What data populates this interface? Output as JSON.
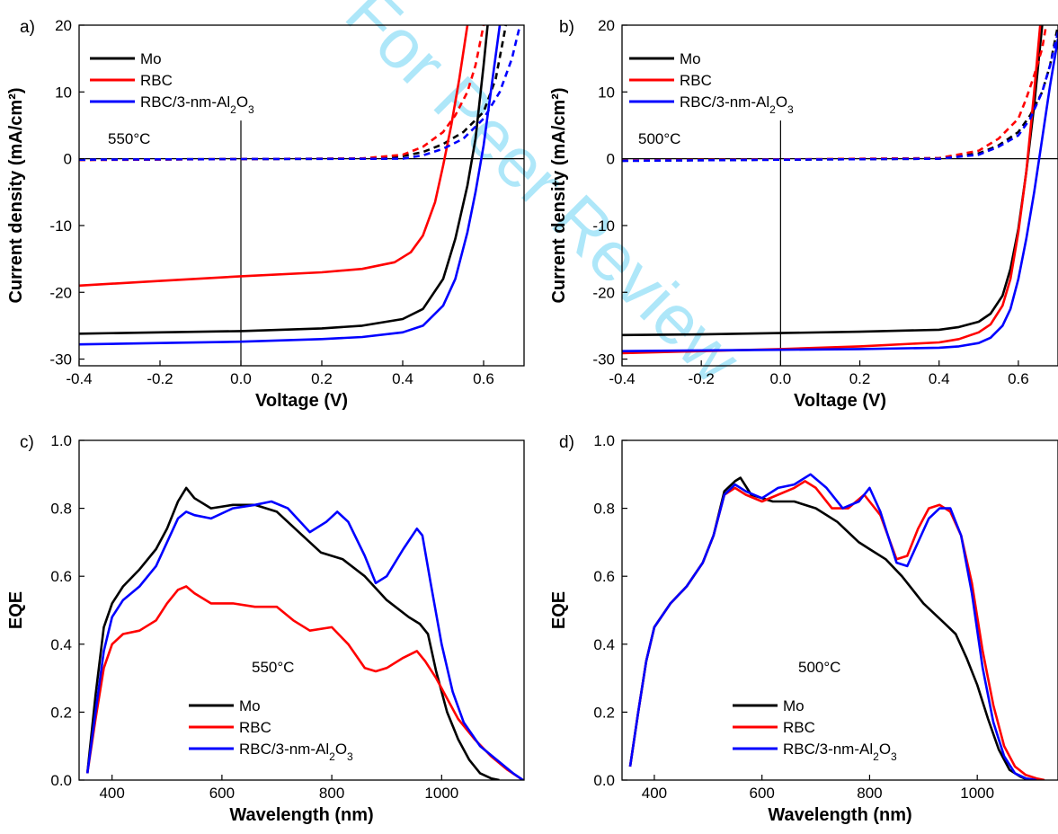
{
  "watermark_text": "For Peer Review",
  "chart_data": [
    {
      "panel": "a)",
      "type": "line",
      "xlabel": "Voltage (V)",
      "ylabel": "Current density (mA/cm²)",
      "xlim": [
        -0.4,
        0.7
      ],
      "ylim": [
        -31,
        20
      ],
      "xticks": [
        -0.4,
        -0.2,
        0.0,
        0.2,
        0.4,
        0.6
      ],
      "xtick_labels": [
        "-0.4",
        "-0.2",
        "0.0",
        "0.2",
        "0.4",
        "0.6"
      ],
      "yticks": [
        -30,
        -20,
        -10,
        0,
        10,
        20
      ],
      "ytick_labels": [
        "-30",
        "-20",
        "-10",
        "0",
        "10",
        "20"
      ],
      "zero_lines": true,
      "annotation": "550°C",
      "legend_placement": "top-left",
      "series": [
        {
          "name": "Mo",
          "color": "#000000",
          "style": "solid",
          "x": [
            -0.4,
            -0.2,
            0.0,
            0.2,
            0.3,
            0.4,
            0.45,
            0.5,
            0.53,
            0.56,
            0.58,
            0.6,
            0.61
          ],
          "y": [
            -26.2,
            -26.0,
            -25.8,
            -25.4,
            -25.0,
            -24.0,
            -22.5,
            -18.0,
            -12.0,
            -4.0,
            3.0,
            14.0,
            20.0
          ]
        },
        {
          "name": "Mo",
          "color": "#000000",
          "style": "dashed",
          "x": [
            -0.4,
            0.0,
            0.3,
            0.4,
            0.45,
            0.5,
            0.55,
            0.6,
            0.63,
            0.655
          ],
          "y": [
            -0.15,
            -0.05,
            0.0,
            0.4,
            1.0,
            2.2,
            4.0,
            7.0,
            12.0,
            20.0
          ]
        },
        {
          "name": "RBC",
          "color": "#ff0000",
          "style": "solid",
          "x": [
            -0.4,
            -0.2,
            0.0,
            0.2,
            0.3,
            0.38,
            0.42,
            0.45,
            0.48,
            0.5,
            0.52,
            0.54,
            0.56
          ],
          "y": [
            -19.0,
            -18.3,
            -17.6,
            -17.0,
            -16.5,
            -15.5,
            -14.0,
            -11.5,
            -6.5,
            -1.0,
            5.0,
            12.0,
            20.0
          ]
        },
        {
          "name": "RBC",
          "color": "#ff0000",
          "style": "dashed",
          "x": [
            -0.4,
            0.0,
            0.3,
            0.4,
            0.45,
            0.5,
            0.53,
            0.56,
            0.58,
            0.6
          ],
          "y": [
            -0.2,
            -0.05,
            0.05,
            0.6,
            1.8,
            4.0,
            6.5,
            10.0,
            14.0,
            20.0
          ]
        },
        {
          "name": "RBC/3-nm-Al2O3",
          "color": "#0000ff",
          "style": "solid",
          "x": [
            -0.4,
            -0.2,
            0.0,
            0.2,
            0.3,
            0.4,
            0.45,
            0.5,
            0.53,
            0.56,
            0.58,
            0.6,
            0.62,
            0.64
          ],
          "y": [
            -27.8,
            -27.6,
            -27.4,
            -27.0,
            -26.7,
            -26.0,
            -25.0,
            -22.0,
            -18.0,
            -11.0,
            -5.0,
            2.0,
            11.0,
            20.0
          ]
        },
        {
          "name": "RBC/3-nm-Al2O3",
          "color": "#0000ff",
          "style": "dashed",
          "x": [
            -0.4,
            0.0,
            0.4,
            0.45,
            0.5,
            0.55,
            0.6,
            0.64,
            0.67,
            0.69
          ],
          "y": [
            -0.15,
            -0.05,
            0.0,
            0.5,
            1.5,
            3.0,
            6.0,
            10.0,
            15.0,
            20.0
          ]
        }
      ]
    },
    {
      "panel": "b)",
      "type": "line",
      "xlabel": "Voltage (V)",
      "ylabel": "Current density (mA/cm²)",
      "xlim": [
        -0.4,
        0.7
      ],
      "ylim": [
        -31,
        20
      ],
      "xticks": [
        -0.4,
        -0.2,
        0.0,
        0.2,
        0.4,
        0.6
      ],
      "xtick_labels": [
        "-0.4",
        "-0.2",
        "0.0",
        "0.2",
        "0.4",
        "0.6"
      ],
      "yticks": [
        -30,
        -20,
        -10,
        0,
        10,
        20
      ],
      "ytick_labels": [
        "-30",
        "-20",
        "-10",
        "0",
        "10",
        "20"
      ],
      "zero_lines": true,
      "annotation": "500°C",
      "legend_placement": "top-left",
      "series": [
        {
          "name": "Mo",
          "color": "#000000",
          "style": "solid",
          "x": [
            -0.4,
            -0.2,
            0.0,
            0.2,
            0.4,
            0.45,
            0.5,
            0.53,
            0.56,
            0.58,
            0.6,
            0.62,
            0.64,
            0.66
          ],
          "y": [
            -26.4,
            -26.3,
            -26.1,
            -25.9,
            -25.6,
            -25.2,
            -24.4,
            -23.2,
            -20.5,
            -16.5,
            -10.5,
            -2.0,
            8.0,
            20.0
          ]
        },
        {
          "name": "Mo",
          "color": "#000000",
          "style": "dashed",
          "x": [
            -0.4,
            0.0,
            0.4,
            0.5,
            0.55,
            0.6,
            0.63,
            0.66,
            0.68,
            0.7
          ],
          "y": [
            -0.3,
            -0.15,
            0.0,
            0.8,
            2.0,
            4.0,
            6.5,
            10.0,
            14.0,
            20.0
          ]
        },
        {
          "name": "RBC",
          "color": "#ff0000",
          "style": "solid",
          "x": [
            -0.4,
            -0.2,
            0.0,
            0.2,
            0.4,
            0.45,
            0.5,
            0.53,
            0.56,
            0.58,
            0.6,
            0.62,
            0.64,
            0.655
          ],
          "y": [
            -29.1,
            -28.8,
            -28.5,
            -28.1,
            -27.5,
            -27.0,
            -26.0,
            -24.8,
            -22.0,
            -18.0,
            -11.0,
            -2.0,
            10.0,
            20.0
          ]
        },
        {
          "name": "RBC",
          "color": "#ff0000",
          "style": "dashed",
          "x": [
            -0.4,
            0.0,
            0.4,
            0.5,
            0.55,
            0.6,
            0.62,
            0.64,
            0.66,
            0.67
          ],
          "y": [
            -0.25,
            -0.1,
            0.1,
            1.2,
            3.0,
            6.0,
            9.0,
            12.5,
            16.5,
            20.0
          ]
        },
        {
          "name": "RBC/3-nm-Al2O3",
          "color": "#0000ff",
          "style": "solid",
          "x": [
            -0.4,
            -0.2,
            0.0,
            0.2,
            0.4,
            0.45,
            0.5,
            0.53,
            0.56,
            0.58,
            0.6,
            0.62,
            0.64,
            0.66,
            0.68,
            0.7
          ],
          "y": [
            -28.8,
            -28.7,
            -28.6,
            -28.5,
            -28.3,
            -28.1,
            -27.6,
            -26.8,
            -25.0,
            -22.5,
            -18.0,
            -12.0,
            -5.0,
            3.0,
            11.0,
            18.0
          ]
        },
        {
          "name": "RBC/3-nm-Al2O3",
          "color": "#0000ff",
          "style": "dashed",
          "x": [
            -0.4,
            0.0,
            0.4,
            0.5,
            0.55,
            0.6,
            0.63,
            0.66,
            0.68,
            0.7
          ],
          "y": [
            -0.3,
            -0.15,
            0.0,
            0.6,
            1.8,
            3.5,
            6.0,
            10.0,
            14.0,
            19.0
          ]
        }
      ]
    },
    {
      "panel": "c)",
      "type": "line",
      "xlabel": "Wavelength (nm)",
      "ylabel": "EQE",
      "xlim": [
        340,
        1150
      ],
      "ylim": [
        0.0,
        1.0
      ],
      "xticks": [
        400,
        600,
        800,
        1000
      ],
      "xtick_labels": [
        "400",
        "600",
        "800",
        "1000"
      ],
      "yticks": [
        0.0,
        0.2,
        0.4,
        0.6,
        0.8,
        1.0
      ],
      "ytick_labels": [
        "0.0",
        "0.2",
        "0.4",
        "0.6",
        "0.8",
        "1.0"
      ],
      "zero_lines": false,
      "annotation": "550°C",
      "legend_placement": "bottom-center",
      "series": [
        {
          "name": "Mo",
          "color": "#000000",
          "style": "solid",
          "x": [
            355,
            370,
            385,
            400,
            420,
            450,
            480,
            500,
            520,
            535,
            550,
            580,
            620,
            660,
            700,
            740,
            780,
            820,
            860,
            900,
            940,
            960,
            975,
            990,
            1010,
            1030,
            1050,
            1070,
            1090,
            1105
          ],
          "y": [
            0.02,
            0.25,
            0.45,
            0.52,
            0.57,
            0.62,
            0.68,
            0.74,
            0.82,
            0.86,
            0.83,
            0.8,
            0.81,
            0.81,
            0.79,
            0.73,
            0.67,
            0.65,
            0.6,
            0.53,
            0.48,
            0.46,
            0.43,
            0.32,
            0.2,
            0.12,
            0.06,
            0.02,
            0.005,
            0.0
          ]
        },
        {
          "name": "RBC",
          "color": "#ff0000",
          "style": "solid",
          "x": [
            355,
            370,
            385,
            400,
            420,
            450,
            480,
            500,
            520,
            535,
            550,
            580,
            620,
            660,
            700,
            730,
            760,
            800,
            830,
            860,
            880,
            900,
            930,
            955,
            970,
            990,
            1010,
            1030,
            1060,
            1090,
            1120,
            1148
          ],
          "y": [
            0.02,
            0.18,
            0.33,
            0.4,
            0.43,
            0.44,
            0.47,
            0.52,
            0.56,
            0.57,
            0.55,
            0.52,
            0.52,
            0.51,
            0.51,
            0.47,
            0.44,
            0.45,
            0.4,
            0.33,
            0.32,
            0.33,
            0.36,
            0.38,
            0.35,
            0.3,
            0.24,
            0.18,
            0.12,
            0.07,
            0.03,
            0.0
          ]
        },
        {
          "name": "RBC/3-nm-Al2O3",
          "color": "#0000ff",
          "style": "solid",
          "x": [
            355,
            370,
            385,
            400,
            420,
            450,
            480,
            500,
            520,
            535,
            550,
            580,
            620,
            660,
            690,
            720,
            760,
            790,
            810,
            830,
            860,
            880,
            900,
            930,
            955,
            965,
            980,
            1000,
            1020,
            1040,
            1070,
            1100,
            1130,
            1148
          ],
          "y": [
            0.02,
            0.2,
            0.38,
            0.48,
            0.53,
            0.57,
            0.63,
            0.7,
            0.77,
            0.79,
            0.78,
            0.77,
            0.8,
            0.81,
            0.82,
            0.8,
            0.73,
            0.76,
            0.79,
            0.76,
            0.66,
            0.58,
            0.6,
            0.68,
            0.74,
            0.72,
            0.58,
            0.4,
            0.26,
            0.17,
            0.1,
            0.06,
            0.02,
            0.0
          ]
        }
      ]
    },
    {
      "panel": "d)",
      "type": "line",
      "xlabel": "Wavelength (nm)",
      "ylabel": "EQE",
      "xlim": [
        340,
        1150
      ],
      "ylim": [
        0.0,
        1.0
      ],
      "xticks": [
        400,
        600,
        800,
        1000
      ],
      "xtick_labels": [
        "400",
        "600",
        "800",
        "1000"
      ],
      "yticks": [
        0.0,
        0.2,
        0.4,
        0.6,
        0.8,
        1.0
      ],
      "ytick_labels": [
        "0.0",
        "0.2",
        "0.4",
        "0.6",
        "0.8",
        "1.0"
      ],
      "zero_lines": false,
      "annotation": "500°C",
      "legend_placement": "bottom-center",
      "series": [
        {
          "name": "Mo",
          "color": "#000000",
          "style": "solid",
          "x": [
            355,
            370,
            385,
            400,
            430,
            460,
            490,
            510,
            530,
            550,
            560,
            580,
            620,
            660,
            700,
            740,
            780,
            800,
            830,
            860,
            900,
            940,
            960,
            980,
            1000,
            1020,
            1040,
            1060,
            1080,
            1095
          ],
          "y": [
            0.04,
            0.2,
            0.35,
            0.45,
            0.52,
            0.57,
            0.64,
            0.72,
            0.85,
            0.88,
            0.89,
            0.84,
            0.82,
            0.82,
            0.8,
            0.76,
            0.7,
            0.68,
            0.65,
            0.6,
            0.52,
            0.46,
            0.43,
            0.36,
            0.28,
            0.18,
            0.09,
            0.03,
            0.01,
            0.0
          ]
        },
        {
          "name": "RBC",
          "color": "#ff0000",
          "style": "solid",
          "x": [
            355,
            370,
            385,
            400,
            430,
            460,
            490,
            510,
            530,
            550,
            570,
            600,
            630,
            660,
            680,
            700,
            730,
            760,
            790,
            820,
            850,
            870,
            890,
            910,
            930,
            950,
            970,
            990,
            1010,
            1030,
            1050,
            1070,
            1090,
            1110,
            1125
          ],
          "y": [
            0.04,
            0.2,
            0.35,
            0.45,
            0.52,
            0.57,
            0.64,
            0.72,
            0.84,
            0.86,
            0.84,
            0.82,
            0.84,
            0.86,
            0.88,
            0.86,
            0.8,
            0.8,
            0.84,
            0.78,
            0.65,
            0.66,
            0.74,
            0.8,
            0.81,
            0.79,
            0.72,
            0.58,
            0.38,
            0.22,
            0.1,
            0.04,
            0.015,
            0.005,
            0.0
          ]
        },
        {
          "name": "RBC/3-nm-Al2O3",
          "color": "#0000ff",
          "style": "solid",
          "x": [
            355,
            370,
            385,
            400,
            430,
            460,
            490,
            510,
            530,
            550,
            570,
            600,
            630,
            660,
            690,
            720,
            750,
            780,
            800,
            820,
            850,
            870,
            890,
            910,
            930,
            950,
            970,
            990,
            1010,
            1030,
            1050,
            1070,
            1090,
            1110
          ],
          "y": [
            0.04,
            0.2,
            0.35,
            0.45,
            0.52,
            0.57,
            0.64,
            0.72,
            0.84,
            0.87,
            0.85,
            0.83,
            0.86,
            0.87,
            0.9,
            0.86,
            0.8,
            0.82,
            0.86,
            0.79,
            0.64,
            0.63,
            0.7,
            0.77,
            0.8,
            0.8,
            0.72,
            0.55,
            0.33,
            0.17,
            0.07,
            0.02,
            0.005,
            0.0
          ]
        }
      ]
    }
  ]
}
